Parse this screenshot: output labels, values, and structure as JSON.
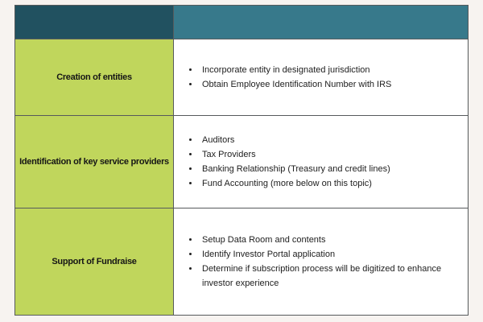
{
  "page": {
    "background": "#f7f3f0"
  },
  "table": {
    "colors": {
      "header_left": "#215160",
      "header_right": "#37798b",
      "label_bg": "#c0d65c",
      "border": "#565a5c",
      "content_bg": "#ffffff",
      "text": "#212121"
    },
    "header": {
      "left_label": "",
      "right_label": ""
    },
    "rows": [
      {
        "label": "Creation of entities",
        "items": [
          "Incorporate entity in designated jurisdiction",
          "Obtain Employee Identification Number with IRS"
        ]
      },
      {
        "label": "Identification of key service providers",
        "items": [
          "Auditors",
          "Tax Providers",
          "Banking Relationship (Treasury and credit lines)",
          "Fund Accounting (more below on this topic)"
        ]
      },
      {
        "label": "Support of Fundraise",
        "items": [
          "Setup Data Room and contents",
          "Identify Investor Portal application",
          "Determine if subscription process will be digitized to enhance investor experience"
        ]
      }
    ]
  }
}
